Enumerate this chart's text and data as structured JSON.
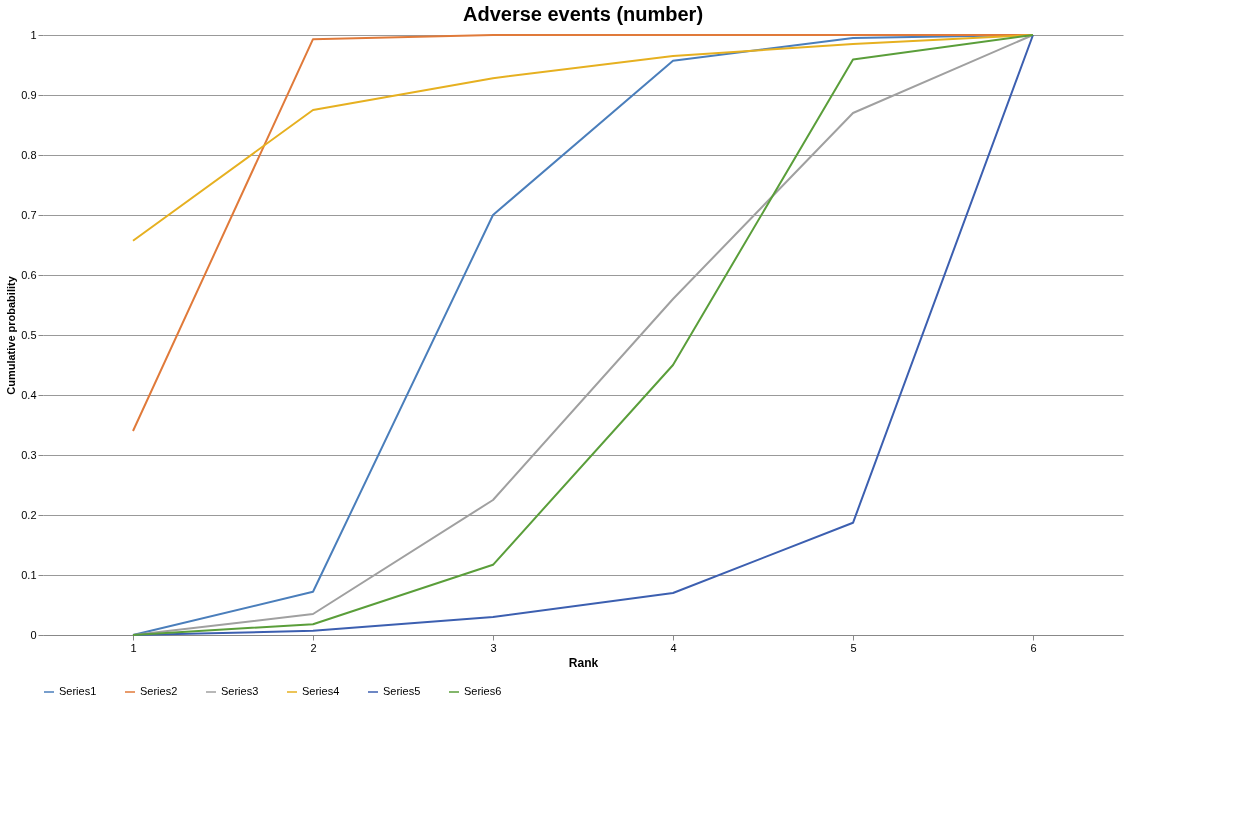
{
  "chart_data": {
    "type": "line",
    "title": "Adverse events (number)",
    "xlabel": "Rank",
    "ylabel": "Cumulative probability",
    "categories": [
      "1",
      "2",
      "3",
      "4",
      "5",
      "6"
    ],
    "series": [
      {
        "name": "Series1",
        "color": "#4a7ebb",
        "values": [
          0,
          0.072,
          0.7,
          0.957,
          0.995,
          1
        ]
      },
      {
        "name": "Series2",
        "color": "#e07a3a",
        "values": [
          0.34,
          0.993,
          1,
          1,
          1,
          1
        ]
      },
      {
        "name": "Series3",
        "color": "#a0a0a0",
        "values": [
          0,
          0.035,
          0.225,
          0.56,
          0.87,
          1
        ]
      },
      {
        "name": "Series4",
        "color": "#e6b020",
        "values": [
          0.657,
          0.875,
          0.928,
          0.965,
          0.985,
          1
        ]
      },
      {
        "name": "Series5",
        "color": "#3c5fb0",
        "values": [
          0,
          0.007,
          0.03,
          0.07,
          0.187,
          1
        ]
      },
      {
        "name": "Series6",
        "color": "#5a9e3a",
        "values": [
          0,
          0.018,
          0.117,
          0.45,
          0.959,
          1
        ]
      }
    ],
    "ylim": [
      0,
      1
    ],
    "yticks": [
      0,
      0.1,
      0.2,
      0.3,
      0.4,
      0.5,
      0.6,
      0.7,
      0.8,
      0.9,
      1
    ],
    "grid": "y",
    "legend": "bottom",
    "marker": "none",
    "line_style": "solid"
  }
}
